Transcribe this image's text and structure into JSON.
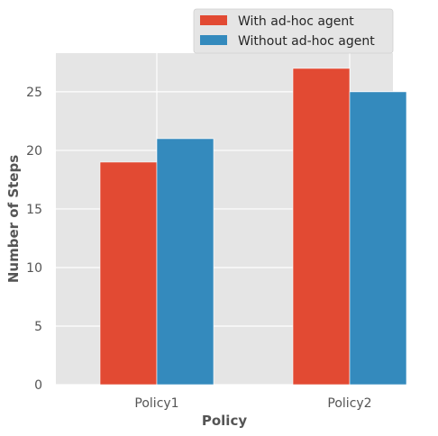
{
  "chart_data": {
    "type": "bar",
    "title": "",
    "xlabel": "Policy",
    "ylabel": "Number of Steps",
    "categories": [
      "Policy1",
      "Policy2"
    ],
    "series": [
      {
        "name": "With ad-hoc agent",
        "values": [
          19,
          27
        ],
        "color": "#E24A33"
      },
      {
        "name": "Without ad-hoc agent",
        "values": [
          21,
          25
        ],
        "color": "#348ABD"
      }
    ],
    "yticks": [
      0,
      5,
      10,
      15,
      20,
      25
    ],
    "ylim": [
      0,
      28.3
    ],
    "grid": true,
    "legend_position": "upper-right, above plot"
  },
  "colors": {
    "plot_background": "#E5E5E5",
    "grid": "#FFFFFF",
    "text": "#555555"
  }
}
